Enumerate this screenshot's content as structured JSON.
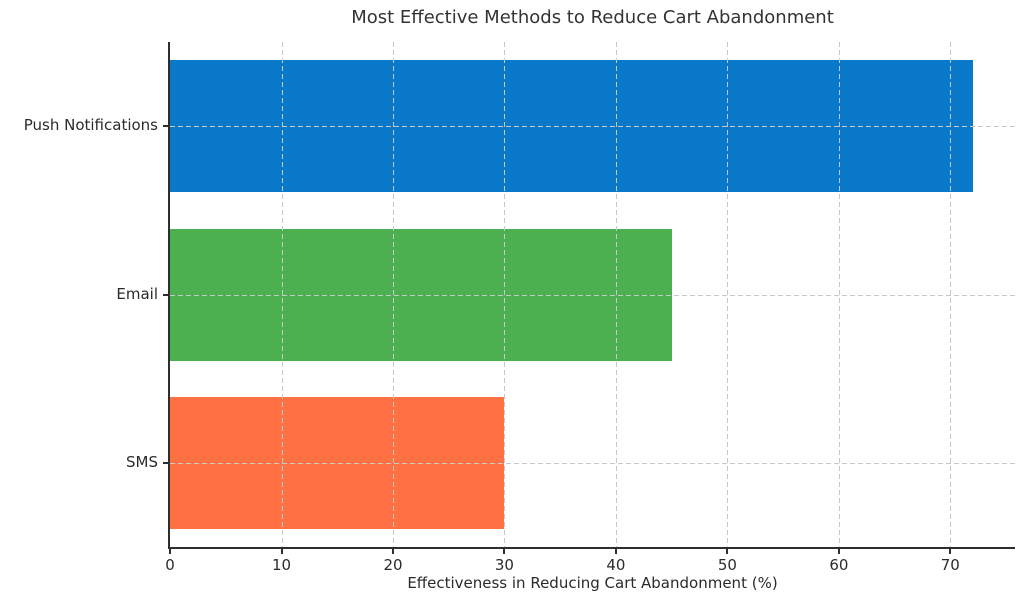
{
  "chart_data": {
    "type": "bar",
    "orientation": "horizontal",
    "title": "Most Effective Methods to Reduce Cart Abandonment",
    "xlabel": "Effectiveness in Reducing Cart Abandonment (%)",
    "ylabel": "",
    "categories": [
      "Push Notifications",
      "Email",
      "SMS"
    ],
    "values": [
      72,
      45,
      30
    ],
    "bar_colors": [
      "#0b79c9",
      "#4caf50",
      "#ff7043"
    ],
    "xlim": [
      0,
      75.8
    ],
    "xticks": [
      0,
      10,
      20,
      30,
      40,
      50,
      60,
      70
    ],
    "grid": "dashed, gray, vertical at ticks and horizontal at bar centers, drawn over bars",
    "legend": "none",
    "background_color": "#ffffff",
    "axis_color": "#2e2e2e",
    "text_color": "#2b2b2b"
  }
}
